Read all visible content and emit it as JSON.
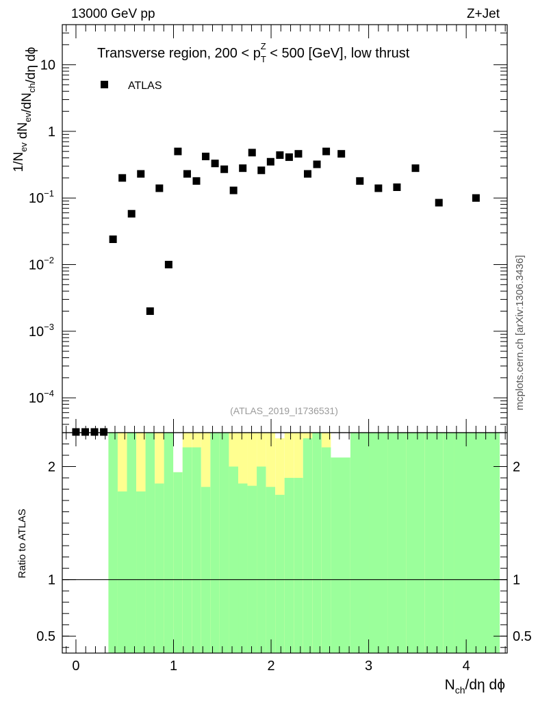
{
  "header": {
    "left": "13000 GeV pp",
    "right": "Z+Jet"
  },
  "chart_data": {
    "type": "scatter",
    "title": "Transverse region, 200 < p_T^Z < 500 [GeV], low thrust",
    "title_parts": {
      "prefix": "Transverse region, 200 < p",
      "sub": "T",
      "sup": "Z",
      "suffix": " < 500 [GeV], low thrust"
    },
    "legend": {
      "entries": [
        "ATLAS"
      ],
      "placement": "top-left"
    },
    "watermark": "(ATLAS_2019_I1736531)",
    "side_label": "mcplots.cern.ch [arXiv:1306.3436]",
    "xlabel": "N_ch/dη dϕ",
    "xlabel_parts": {
      "pre": "N",
      "sub": "ch",
      "post": "/dη dϕ"
    },
    "xlim": [
      -0.14,
      4.42
    ],
    "x_ticks": [
      {
        "value": 0,
        "label": "0"
      },
      {
        "value": 1,
        "label": "1"
      },
      {
        "value": 2,
        "label": "2"
      },
      {
        "value": 3,
        "label": "3"
      },
      {
        "value": 4,
        "label": "4"
      }
    ],
    "main": {
      "ylabel": "1/N_ev dN_ev/dN_ch/dη dϕ",
      "ylabel_parts": [
        {
          "t": "1/N",
          "s": "n"
        },
        {
          "t": "ev",
          "s": "sub"
        },
        {
          "t": " dN",
          "s": "n"
        },
        {
          "t": "ev",
          "s": "sub"
        },
        {
          "t": "/dN",
          "s": "n"
        },
        {
          "t": "ch",
          "s": "sub"
        },
        {
          "t": "/dη dϕ",
          "s": "n"
        }
      ],
      "yscale": "log",
      "ylim": [
        3e-05,
        40
      ],
      "y_ticks": [
        {
          "value": 10,
          "base": "10",
          "exp": ""
        },
        {
          "value": 1,
          "base": "1",
          "exp": ""
        },
        {
          "value": 0.1,
          "base": "10",
          "exp": "−1"
        },
        {
          "value": 0.01,
          "base": "10",
          "exp": "−2"
        },
        {
          "value": 0.001,
          "base": "10",
          "exp": "−3"
        },
        {
          "value": 0.0001,
          "base": "10",
          "exp": "−4"
        }
      ],
      "series": [
        {
          "name": "ATLAS",
          "marker": "square",
          "points": [
            {
              "x": 0.0,
              "y": 3e-05
            },
            {
              "x": 0.095,
              "y": 3e-05
            },
            {
              "x": 0.19,
              "y": 3e-05
            },
            {
              "x": 0.285,
              "y": 3e-05
            },
            {
              "x": 0.38,
              "y": 0.024
            },
            {
              "x": 0.475,
              "y": 0.2
            },
            {
              "x": 0.57,
              "y": 0.058
            },
            {
              "x": 0.665,
              "y": 0.23
            },
            {
              "x": 0.76,
              "y": 0.002
            },
            {
              "x": 0.855,
              "y": 0.14
            },
            {
              "x": 0.95,
              "y": 0.01
            },
            {
              "x": 1.045,
              "y": 0.5
            },
            {
              "x": 1.14,
              "y": 0.23
            },
            {
              "x": 1.235,
              "y": 0.18
            },
            {
              "x": 1.33,
              "y": 0.42
            },
            {
              "x": 1.425,
              "y": 0.33
            },
            {
              "x": 1.52,
              "y": 0.27
            },
            {
              "x": 1.615,
              "y": 0.13
            },
            {
              "x": 1.71,
              "y": 0.28
            },
            {
              "x": 1.805,
              "y": 0.48
            },
            {
              "x": 1.9,
              "y": 0.26
            },
            {
              "x": 1.995,
              "y": 0.35
            },
            {
              "x": 2.09,
              "y": 0.44
            },
            {
              "x": 2.185,
              "y": 0.41
            },
            {
              "x": 2.28,
              "y": 0.46
            },
            {
              "x": 2.375,
              "y": 0.23
            },
            {
              "x": 2.47,
              "y": 0.32
            },
            {
              "x": 2.565,
              "y": 0.5
            },
            {
              "x": 2.72,
              "y": 0.46
            },
            {
              "x": 2.91,
              "y": 0.18
            },
            {
              "x": 3.1,
              "y": 0.14
            },
            {
              "x": 3.29,
              "y": 0.145
            },
            {
              "x": 3.48,
              "y": 0.28
            },
            {
              "x": 3.72,
              "y": 0.085
            },
            {
              "x": 4.1,
              "y": 0.1
            }
          ]
        }
      ]
    },
    "ratio": {
      "ylabel": "Ratio to ATLAS",
      "ylim": [
        0.35,
        2.3
      ],
      "y_ticks": [
        {
          "value": 2,
          "label": "2"
        },
        {
          "value": 1,
          "label": "1"
        },
        {
          "value": 0.5,
          "label": "0.5"
        }
      ],
      "reference_line": 1,
      "bands": [
        {
          "x0": 0.333,
          "x1": 0.428,
          "green": [
            0.35,
            2.3
          ],
          "yellow": [
            0.35,
            2.3
          ]
        },
        {
          "x0": 0.428,
          "x1": 0.523,
          "green": [
            0.35,
            1.78
          ],
          "yellow": [
            0.35,
            2.3
          ]
        },
        {
          "x0": 0.523,
          "x1": 0.618,
          "green": [
            0.35,
            2.3
          ],
          "yellow": [
            0.35,
            2.3
          ]
        },
        {
          "x0": 0.618,
          "x1": 0.713,
          "green": [
            0.35,
            1.78
          ],
          "yellow": [
            0.35,
            2.3
          ]
        },
        {
          "x0": 0.713,
          "x1": 0.808,
          "green": [
            0.35,
            2.3
          ],
          "yellow": [
            0.35,
            2.3
          ]
        },
        {
          "x0": 0.808,
          "x1": 0.903,
          "green": [
            0.35,
            1.85
          ],
          "yellow": [
            0.35,
            2.3
          ]
        },
        {
          "x0": 0.903,
          "x1": 0.998,
          "green": [
            0.35,
            2.3
          ],
          "yellow": [
            0.35,
            2.3
          ]
        },
        {
          "x0": 0.998,
          "x1": 1.093,
          "green": [
            0.35,
            1.95
          ],
          "yellow": [
            0.56,
            1.95
          ]
        },
        {
          "x0": 1.093,
          "x1": 1.188,
          "green": [
            0.35,
            2.17
          ],
          "yellow": [
            0.35,
            2.3
          ]
        },
        {
          "x0": 1.188,
          "x1": 1.283,
          "green": [
            0.35,
            2.17
          ],
          "yellow": [
            0.35,
            2.3
          ]
        },
        {
          "x0": 1.283,
          "x1": 1.378,
          "green": [
            0.35,
            1.82
          ],
          "yellow": [
            0.35,
            2.3
          ]
        },
        {
          "x0": 1.378,
          "x1": 1.473,
          "green": [
            0.35,
            2.3
          ],
          "yellow": [
            0.35,
            2.3
          ]
        },
        {
          "x0": 1.473,
          "x1": 1.568,
          "green": [
            0.35,
            2.3
          ],
          "yellow": [
            0.35,
            2.3
          ]
        },
        {
          "x0": 1.568,
          "x1": 1.663,
          "green": [
            0.35,
            2.0
          ],
          "yellow": [
            0.35,
            2.3
          ]
        },
        {
          "x0": 1.663,
          "x1": 1.758,
          "green": [
            0.35,
            1.85
          ],
          "yellow": [
            0.35,
            2.3
          ]
        },
        {
          "x0": 1.758,
          "x1": 1.853,
          "green": [
            0.35,
            1.83
          ],
          "yellow": [
            0.35,
            2.3
          ]
        },
        {
          "x0": 1.853,
          "x1": 1.948,
          "green": [
            0.35,
            2.0
          ],
          "yellow": [
            0.35,
            2.3
          ]
        },
        {
          "x0": 1.948,
          "x1": 2.043,
          "green": [
            0.35,
            1.82
          ],
          "yellow": [
            0.35,
            2.3
          ]
        },
        {
          "x0": 2.043,
          "x1": 2.138,
          "green": [
            0.35,
            1.75
          ],
          "yellow": [
            0.35,
            2.25
          ]
        },
        {
          "x0": 2.138,
          "x1": 2.233,
          "green": [
            0.35,
            1.9
          ],
          "yellow": [
            0.35,
            2.3
          ]
        },
        {
          "x0": 2.233,
          "x1": 2.328,
          "green": [
            0.35,
            1.9
          ],
          "yellow": [
            0.35,
            2.3
          ]
        },
        {
          "x0": 2.328,
          "x1": 2.423,
          "green": [
            0.35,
            2.25
          ],
          "yellow": [
            0.35,
            2.3
          ]
        },
        {
          "x0": 2.423,
          "x1": 2.518,
          "green": [
            0.35,
            2.3
          ],
          "yellow": [
            0.35,
            2.3
          ]
        },
        {
          "x0": 2.518,
          "x1": 2.613,
          "green": [
            0.35,
            2.17
          ],
          "yellow": [
            0.35,
            2.3
          ]
        },
        {
          "x0": 2.613,
          "x1": 2.813,
          "green": [
            0.35,
            2.08
          ],
          "yellow": [
            0.5,
            1.72
          ]
        },
        {
          "x0": 2.813,
          "x1": 3.003,
          "green": [
            0.35,
            2.3
          ],
          "yellow": [
            0.35,
            2.3
          ]
        },
        {
          "x0": 3.003,
          "x1": 3.193,
          "green": [
            0.35,
            2.3
          ],
          "yellow": [
            0.35,
            2.3
          ]
        },
        {
          "x0": 3.193,
          "x1": 3.383,
          "green": [
            0.35,
            2.3
          ],
          "yellow": [
            0.35,
            2.3
          ]
        },
        {
          "x0": 3.383,
          "x1": 3.573,
          "green": [
            0.35,
            2.3
          ],
          "yellow": [
            0.35,
            2.3
          ]
        },
        {
          "x0": 3.573,
          "x1": 3.763,
          "green": [
            0.35,
            2.3
          ],
          "yellow": [
            0.35,
            2.3
          ]
        },
        {
          "x0": 3.763,
          "x1": 3.873,
          "green": [
            0.35,
            2.3
          ],
          "yellow": [
            0.35,
            2.3
          ]
        },
        {
          "x0": 3.873,
          "x1": 4.343,
          "green": [
            0.35,
            2.3
          ],
          "yellow": [
            0.35,
            2.3
          ]
        }
      ],
      "colors": {
        "green": "#9bff9b",
        "yellow": "#ffff90",
        "white_gap": "#ffffff"
      }
    }
  }
}
